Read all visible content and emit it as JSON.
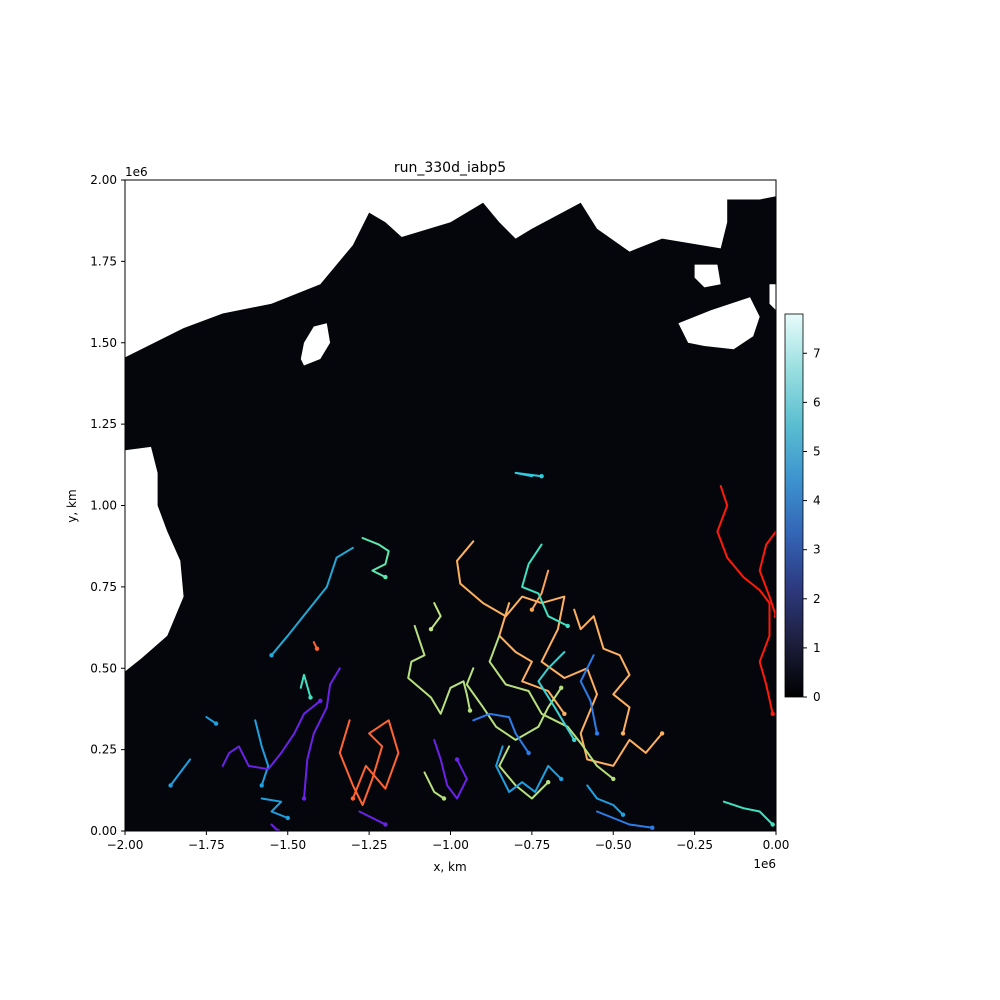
{
  "chart_data": {
    "type": "line",
    "title": "run_330d_iabp5",
    "xlabel": "x, km",
    "ylabel": "y, km",
    "x_offset_label": "1e6",
    "y_offset_label": "1e6",
    "xlim": [
      -2.0,
      0.0
    ],
    "ylim": [
      0.0,
      2.0
    ],
    "xticks": [
      -2.0,
      -1.75,
      -1.5,
      -1.25,
      -1.0,
      -0.75,
      -0.5,
      -0.25,
      0.0
    ],
    "xtick_labels": [
      "−2.00",
      "−1.75",
      "−1.50",
      "−1.25",
      "−1.00",
      "−0.75",
      "−0.50",
      "−0.25",
      "0.00"
    ],
    "yticks": [
      0.0,
      0.25,
      0.5,
      0.75,
      1.0,
      1.25,
      1.5,
      1.75,
      2.0
    ],
    "ytick_labels": [
      "0.00",
      "0.25",
      "0.50",
      "0.75",
      "1.00",
      "1.25",
      "1.50",
      "1.75",
      "2.00"
    ],
    "background_field_color": "#05060b",
    "land_color": "#ffffff",
    "colorbar": {
      "range": [
        0,
        7.8
      ],
      "ticks": [
        0,
        1,
        2,
        3,
        4,
        5,
        6,
        7
      ],
      "tick_labels": [
        "0",
        "1",
        "2",
        "3",
        "4",
        "5",
        "6",
        "7"
      ],
      "colors": [
        "#000000",
        "#1d1f3d",
        "#2d3a80",
        "#3466b7",
        "#3d94cf",
        "#5cbfd1",
        "#9adfe0",
        "#e8fbfb"
      ]
    },
    "land_polygon": [
      [
        -2.0,
        1.455
      ],
      [
        -1.93,
        1.49
      ],
      [
        -1.82,
        1.545
      ],
      [
        -1.7,
        1.59
      ],
      [
        -1.55,
        1.62
      ],
      [
        -1.4,
        1.68
      ],
      [
        -1.3,
        1.8
      ],
      [
        -1.25,
        1.9
      ],
      [
        -1.2,
        1.87
      ],
      [
        -1.15,
        1.825
      ],
      [
        -1.0,
        1.87
      ],
      [
        -0.9,
        1.93
      ],
      [
        -0.85,
        1.87
      ],
      [
        -0.8,
        1.82
      ],
      [
        -0.75,
        1.85
      ],
      [
        -0.6,
        1.93
      ],
      [
        -0.55,
        1.85
      ],
      [
        -0.45,
        1.78
      ],
      [
        -0.35,
        1.82
      ],
      [
        -0.17,
        1.79
      ],
      [
        -0.15,
        1.87
      ],
      [
        -0.15,
        1.94
      ],
      [
        -0.05,
        1.94
      ],
      [
        0.0,
        1.95
      ],
      [
        0.0,
        2.0
      ],
      [
        -2.0,
        2.0
      ]
    ],
    "left_land_polygon": [
      [
        -2.0,
        1.17
      ],
      [
        -1.92,
        1.18
      ],
      [
        -1.9,
        1.1
      ],
      [
        -1.9,
        1.0
      ],
      [
        -1.87,
        0.92
      ],
      [
        -1.83,
        0.83
      ],
      [
        -1.82,
        0.72
      ],
      [
        -1.87,
        0.6
      ],
      [
        -1.95,
        0.53
      ],
      [
        -2.0,
        0.49
      ]
    ],
    "island_polygons": [
      [
        [
          -1.45,
          1.43
        ],
        [
          -1.4,
          1.45
        ],
        [
          -1.37,
          1.5
        ],
        [
          -1.38,
          1.56
        ],
        [
          -1.42,
          1.55
        ],
        [
          -1.45,
          1.5
        ],
        [
          -1.46,
          1.45
        ]
      ],
      [
        [
          -0.3,
          1.56
        ],
        [
          -0.2,
          1.6
        ],
        [
          -0.08,
          1.64
        ],
        [
          -0.05,
          1.58
        ],
        [
          -0.07,
          1.52
        ],
        [
          -0.13,
          1.48
        ],
        [
          -0.22,
          1.49
        ],
        [
          -0.27,
          1.5
        ]
      ],
      [
        [
          -0.25,
          1.74
        ],
        [
          -0.18,
          1.74
        ],
        [
          -0.17,
          1.68
        ],
        [
          -0.22,
          1.67
        ],
        [
          -0.25,
          1.7
        ]
      ],
      [
        [
          -0.02,
          1.68
        ],
        [
          0.0,
          1.68
        ],
        [
          0.0,
          1.6
        ],
        [
          -0.02,
          1.62
        ]
      ]
    ],
    "series": [
      {
        "color": "#ff1a0a",
        "points": [
          [
            -0.17,
            1.06
          ],
          [
            -0.15,
            1.0
          ],
          [
            -0.18,
            0.92
          ],
          [
            -0.15,
            0.84
          ],
          [
            -0.1,
            0.78
          ],
          [
            -0.05,
            0.74
          ],
          [
            -0.02,
            0.7
          ],
          [
            -0.02,
            0.6
          ],
          [
            -0.05,
            0.52
          ],
          [
            -0.03,
            0.45
          ],
          [
            -0.01,
            0.36
          ]
        ]
      },
      {
        "color": "#ff1a0a",
        "points": [
          [
            0.0,
            0.92
          ],
          [
            -0.03,
            0.88
          ],
          [
            -0.05,
            0.8
          ],
          [
            -0.02,
            0.72
          ],
          [
            0.0,
            0.66
          ]
        ]
      },
      {
        "color": "#ff6432",
        "points": [
          [
            -1.31,
            0.34
          ],
          [
            -1.34,
            0.24
          ],
          [
            -1.3,
            0.14
          ],
          [
            -1.27,
            0.08
          ],
          [
            -1.24,
            0.16
          ],
          [
            -1.21,
            0.26
          ],
          [
            -1.25,
            0.3
          ],
          [
            -1.19,
            0.34
          ],
          [
            -1.16,
            0.24
          ],
          [
            -1.2,
            0.13
          ],
          [
            -1.26,
            0.2
          ],
          [
            -1.3,
            0.1
          ]
        ]
      },
      {
        "color": "#ff6432",
        "points": [
          [
            -1.42,
            0.58
          ],
          [
            -1.41,
            0.56
          ]
        ]
      },
      {
        "color": "#fcb060",
        "points": [
          [
            -0.93,
            0.89
          ],
          [
            -0.98,
            0.83
          ],
          [
            -0.97,
            0.76
          ],
          [
            -0.9,
            0.7
          ],
          [
            -0.83,
            0.66
          ],
          [
            -0.78,
            0.72
          ],
          [
            -0.72,
            0.7
          ],
          [
            -0.65,
            0.72
          ],
          [
            -0.67,
            0.62
          ],
          [
            -0.72,
            0.52
          ],
          [
            -0.65,
            0.47
          ],
          [
            -0.58,
            0.5
          ],
          [
            -0.55,
            0.42
          ],
          [
            -0.6,
            0.3
          ],
          [
            -0.58,
            0.22
          ],
          [
            -0.5,
            0.2
          ],
          [
            -0.45,
            0.28
          ],
          [
            -0.4,
            0.24
          ],
          [
            -0.35,
            0.3
          ]
        ]
      },
      {
        "color": "#fcb060",
        "points": [
          [
            -0.62,
            0.68
          ],
          [
            -0.6,
            0.62
          ],
          [
            -0.56,
            0.66
          ],
          [
            -0.53,
            0.56
          ],
          [
            -0.48,
            0.54
          ],
          [
            -0.45,
            0.48
          ],
          [
            -0.5,
            0.42
          ],
          [
            -0.45,
            0.38
          ],
          [
            -0.47,
            0.3
          ]
        ]
      },
      {
        "color": "#fcb060",
        "points": [
          [
            -0.82,
            0.7
          ],
          [
            -0.85,
            0.6
          ],
          [
            -0.8,
            0.55
          ],
          [
            -0.75,
            0.52
          ],
          [
            -0.78,
            0.46
          ],
          [
            -0.7,
            0.43
          ],
          [
            -0.65,
            0.36
          ]
        ]
      },
      {
        "color": "#f9a458",
        "points": [
          [
            -0.7,
            0.8
          ],
          [
            -0.72,
            0.73
          ],
          [
            -0.75,
            0.68
          ]
        ]
      },
      {
        "color": "#b8e07e",
        "points": [
          [
            -1.11,
            0.63
          ],
          [
            -1.09,
            0.57
          ],
          [
            -1.08,
            0.54
          ],
          [
            -1.12,
            0.52
          ],
          [
            -1.13,
            0.47
          ],
          [
            -1.06,
            0.41
          ],
          [
            -1.03,
            0.36
          ],
          [
            -1.0,
            0.44
          ],
          [
            -0.96,
            0.46
          ],
          [
            -0.95,
            0.42
          ],
          [
            -0.94,
            0.37
          ]
        ]
      },
      {
        "color": "#b8e07e",
        "points": [
          [
            -0.93,
            0.5
          ],
          [
            -0.95,
            0.45
          ],
          [
            -0.9,
            0.38
          ],
          [
            -0.86,
            0.32
          ],
          [
            -0.8,
            0.28
          ],
          [
            -0.73,
            0.32
          ],
          [
            -0.7,
            0.38
          ],
          [
            -0.66,
            0.44
          ]
        ]
      },
      {
        "color": "#b8e07e",
        "points": [
          [
            -0.85,
            0.6
          ],
          [
            -0.88,
            0.52
          ],
          [
            -0.83,
            0.45
          ],
          [
            -0.76,
            0.43
          ],
          [
            -0.72,
            0.36
          ],
          [
            -0.64,
            0.32
          ],
          [
            -0.6,
            0.27
          ],
          [
            -0.55,
            0.2
          ],
          [
            -0.5,
            0.16
          ]
        ]
      },
      {
        "color": "#b8e07e",
        "points": [
          [
            -1.08,
            0.18
          ],
          [
            -1.05,
            0.12
          ],
          [
            -1.02,
            0.1
          ]
        ]
      },
      {
        "color": "#b8e07e",
        "points": [
          [
            -0.82,
            0.26
          ],
          [
            -0.85,
            0.2
          ],
          [
            -0.8,
            0.14
          ],
          [
            -0.75,
            0.1
          ],
          [
            -0.7,
            0.15
          ]
        ]
      },
      {
        "color": "#c3e485",
        "points": [
          [
            -1.05,
            0.7
          ],
          [
            -1.03,
            0.66
          ],
          [
            -1.06,
            0.62
          ]
        ]
      },
      {
        "color": "#40e0c0",
        "points": [
          [
            -0.72,
            0.88
          ],
          [
            -0.76,
            0.82
          ],
          [
            -0.78,
            0.75
          ],
          [
            -0.73,
            0.73
          ],
          [
            -0.7,
            0.66
          ],
          [
            -0.64,
            0.63
          ]
        ]
      },
      {
        "color": "#40e0c0",
        "points": [
          [
            -1.46,
            0.44
          ],
          [
            -1.45,
            0.48
          ],
          [
            -1.43,
            0.41
          ]
        ]
      },
      {
        "color": "#40e0c0",
        "points": [
          [
            -0.16,
            0.09
          ],
          [
            -0.1,
            0.07
          ],
          [
            -0.05,
            0.06
          ],
          [
            -0.01,
            0.02
          ]
        ]
      },
      {
        "color": "#5de8b0",
        "points": [
          [
            -1.27,
            0.9
          ],
          [
            -1.22,
            0.88
          ],
          [
            -1.19,
            0.86
          ],
          [
            -1.2,
            0.82
          ],
          [
            -1.24,
            0.8
          ],
          [
            -1.2,
            0.78
          ]
        ]
      },
      {
        "color": "#3cd0d0",
        "points": [
          [
            -0.65,
            0.55
          ],
          [
            -0.7,
            0.5
          ],
          [
            -0.73,
            0.46
          ],
          [
            -0.68,
            0.38
          ],
          [
            -0.62,
            0.28
          ]
        ]
      },
      {
        "color": "#2ecce0",
        "points": [
          [
            -0.75,
            1.09
          ],
          [
            -0.8,
            1.1
          ],
          [
            -0.72,
            1.09
          ]
        ]
      },
      {
        "color": "#22a8d6",
        "points": [
          [
            -1.3,
            0.87
          ],
          [
            -1.35,
            0.84
          ],
          [
            -1.38,
            0.75
          ],
          [
            -1.42,
            0.7
          ],
          [
            -1.46,
            0.65
          ],
          [
            -1.5,
            0.6
          ],
          [
            -1.55,
            0.54
          ]
        ]
      },
      {
        "color": "#1fa0e0",
        "points": [
          [
            -1.58,
            0.1
          ],
          [
            -1.52,
            0.09
          ],
          [
            -1.55,
            0.06
          ],
          [
            -1.5,
            0.04
          ]
        ]
      },
      {
        "color": "#1fa0e0",
        "points": [
          [
            -1.8,
            0.22
          ],
          [
            -1.83,
            0.18
          ],
          [
            -1.86,
            0.14
          ]
        ]
      },
      {
        "color": "#1fa0e0",
        "points": [
          [
            -1.75,
            0.35
          ],
          [
            -1.72,
            0.33
          ]
        ]
      },
      {
        "color": "#1fa0e0",
        "points": [
          [
            -0.84,
            0.26
          ],
          [
            -0.86,
            0.2
          ],
          [
            -0.82,
            0.12
          ],
          [
            -0.78,
            0.15
          ],
          [
            -0.74,
            0.12
          ],
          [
            -0.7,
            0.2
          ],
          [
            -0.66,
            0.16
          ]
        ]
      },
      {
        "color": "#1fa0e0",
        "points": [
          [
            -0.58,
            0.14
          ],
          [
            -0.55,
            0.1
          ],
          [
            -0.5,
            0.08
          ],
          [
            -0.47,
            0.05
          ]
        ]
      },
      {
        "color": "#1fa0e0",
        "points": [
          [
            -1.6,
            0.34
          ],
          [
            -1.58,
            0.26
          ],
          [
            -1.56,
            0.2
          ],
          [
            -1.58,
            0.14
          ]
        ]
      },
      {
        "color": "#2d7de8",
        "points": [
          [
            -0.93,
            0.34
          ],
          [
            -0.88,
            0.36
          ],
          [
            -0.82,
            0.35
          ],
          [
            -0.8,
            0.3
          ],
          [
            -0.76,
            0.24
          ]
        ]
      },
      {
        "color": "#2d7de8",
        "points": [
          [
            -0.56,
            0.54
          ],
          [
            -0.6,
            0.46
          ],
          [
            -0.57,
            0.4
          ],
          [
            -0.55,
            0.3
          ]
        ]
      },
      {
        "color": "#2d7de8",
        "points": [
          [
            -0.55,
            0.06
          ],
          [
            -0.45,
            0.02
          ],
          [
            -0.38,
            0.01
          ]
        ]
      },
      {
        "color": "#6a22e8",
        "points": [
          [
            -1.34,
            0.5
          ],
          [
            -1.37,
            0.45
          ],
          [
            -1.38,
            0.38
          ],
          [
            -1.42,
            0.3
          ],
          [
            -1.44,
            0.22
          ],
          [
            -1.45,
            0.1
          ]
        ]
      },
      {
        "color": "#6a22e8",
        "points": [
          [
            -1.7,
            0.2
          ],
          [
            -1.68,
            0.24
          ],
          [
            -1.65,
            0.26
          ],
          [
            -1.62,
            0.2
          ],
          [
            -1.56,
            0.19
          ],
          [
            -1.52,
            0.24
          ],
          [
            -1.48,
            0.3
          ],
          [
            -1.45,
            0.36
          ],
          [
            -1.4,
            0.4
          ]
        ]
      },
      {
        "color": "#6a22e8",
        "points": [
          [
            -1.05,
            0.28
          ],
          [
            -1.03,
            0.22
          ],
          [
            -1.01,
            0.14
          ],
          [
            -0.98,
            0.1
          ],
          [
            -0.95,
            0.16
          ],
          [
            -0.98,
            0.22
          ]
        ]
      },
      {
        "color": "#6a22e8",
        "points": [
          [
            -1.28,
            0.06
          ],
          [
            -1.24,
            0.04
          ],
          [
            -1.2,
            0.02
          ]
        ]
      },
      {
        "color": "#6a22e8",
        "points": [
          [
            -1.55,
            0.02
          ],
          [
            -1.53,
            0.0
          ]
        ]
      }
    ]
  }
}
